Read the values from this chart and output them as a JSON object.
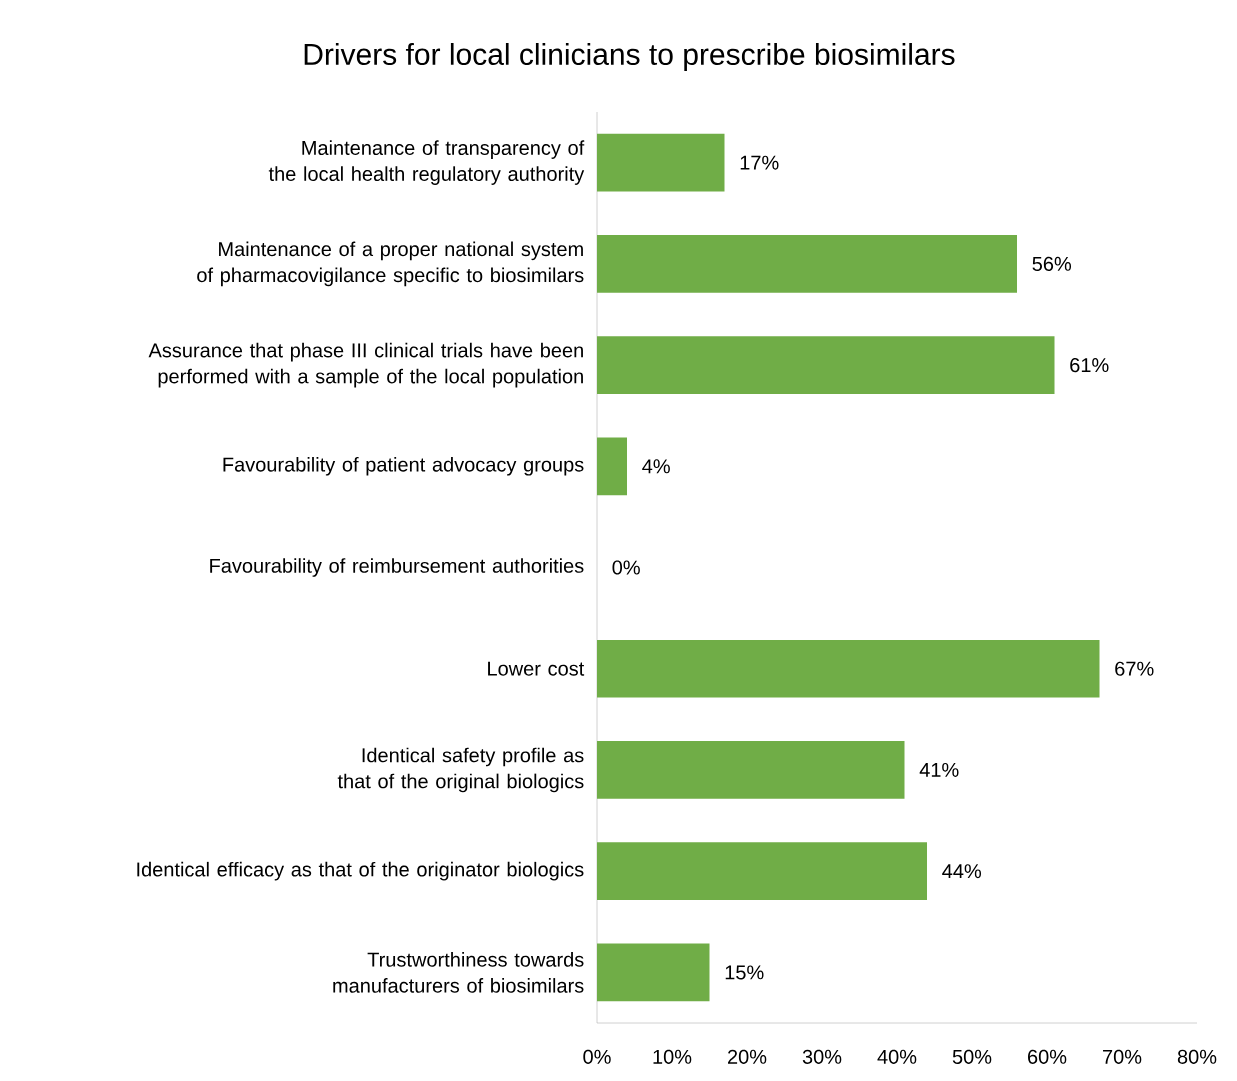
{
  "chart_data": {
    "type": "bar",
    "orientation": "horizontal",
    "title": "Drivers for local clinicians to prescribe biosimilars",
    "categories": [
      "Maintenance of transparency of the local health regulatory authority",
      "Maintenance of a proper national system of pharmacovigilance specific to biosimilars",
      "Assurance that phase III clinical trials have been performed with a sample of the local population",
      "Favourability of patient advocacy groups",
      "Favourability of reimbursement authorities",
      "Lower cost",
      "Identical safety profile as that of the original biologics",
      "Identical efficacy as that of the originator biologics",
      "Trustworthiness towards manufacturers of biosimilars"
    ],
    "values": [
      17,
      56,
      61,
      4,
      0,
      67,
      41,
      44,
      15
    ],
    "value_labels": [
      "17%",
      "56%",
      "61%",
      "4%",
      "0%",
      "67%",
      "41%",
      "44%",
      "15%"
    ],
    "color": "#70ad47",
    "xlim": [
      0,
      80
    ],
    "xticks": [
      {
        "value": 0,
        "label": "0%"
      },
      {
        "value": 10,
        "label": "10%"
      },
      {
        "value": 20,
        "label": "20%"
      },
      {
        "value": 30,
        "label": "30%"
      },
      {
        "value": 40,
        "label": "40%"
      },
      {
        "value": 50,
        "label": "50%"
      },
      {
        "value": 60,
        "label": "60%"
      },
      {
        "value": 70,
        "label": "70%"
      },
      {
        "value": 80,
        "label": "80%"
      }
    ],
    "grid": false
  }
}
